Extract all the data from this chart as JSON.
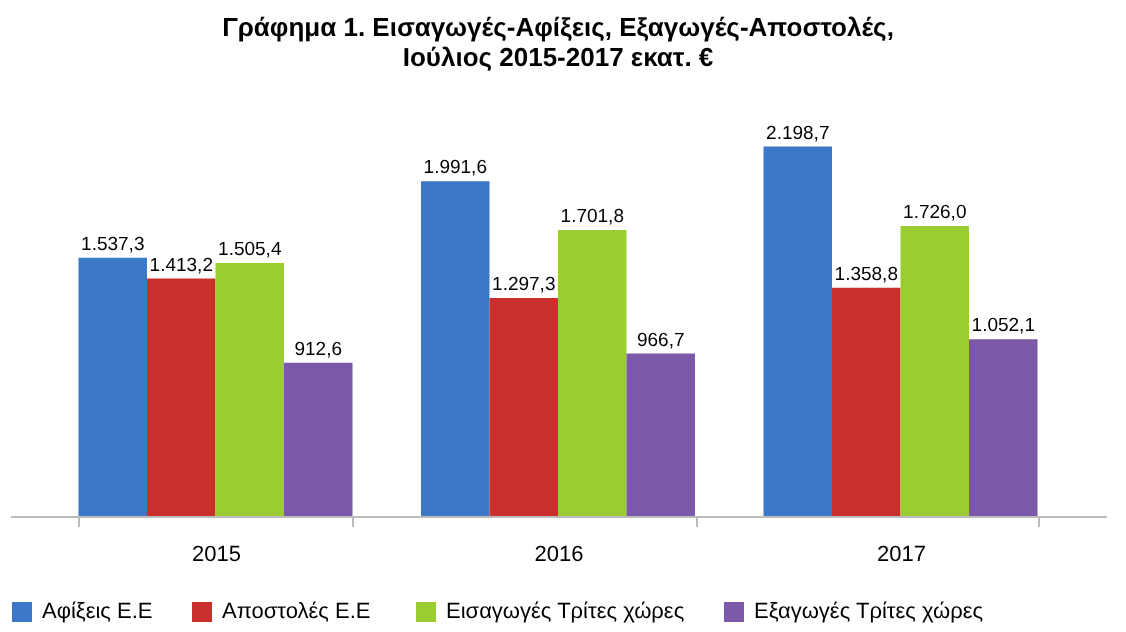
{
  "chart_data": {
    "type": "bar",
    "title": [
      "Γράφημα 1. Εισαγωγές-Αφίξεις, Εξαγωγές-Αποστολές,",
      "Ιούλιος 2015-2017 εκατ. €"
    ],
    "categories": [
      "2015",
      "2016",
      "2017"
    ],
    "series": [
      {
        "name": "Αφίξεις Ε.Ε",
        "color": "#3c78c8",
        "values": [
          1537.3,
          1991.6,
          2198.7
        ],
        "value_labels": [
          "1.537,3",
          "1.991,6",
          "2.198,7"
        ]
      },
      {
        "name": "Αποστολές  Ε.Ε",
        "color": "#c9302c",
        "values": [
          1413.2,
          1297.3,
          1358.8
        ],
        "value_labels": [
          "1.413,2",
          "1.297,3",
          "1.358,8"
        ]
      },
      {
        "name": "Εισαγωγές Τρίτες χώρες",
        "color": "#9acd32",
        "values": [
          1505.4,
          1701.8,
          1726.0
        ],
        "value_labels": [
          "1.505,4",
          "1.701,8",
          "1.726,0"
        ]
      },
      {
        "name": "Εξαγωγές Τρίτες χώρες",
        "color": "#7b59a8",
        "values": [
          912.6,
          966.7,
          1052.1
        ],
        "value_labels": [
          "912,6",
          "966,7",
          "1.052,1"
        ]
      }
    ],
    "legend": "bottom",
    "grid": false
  }
}
